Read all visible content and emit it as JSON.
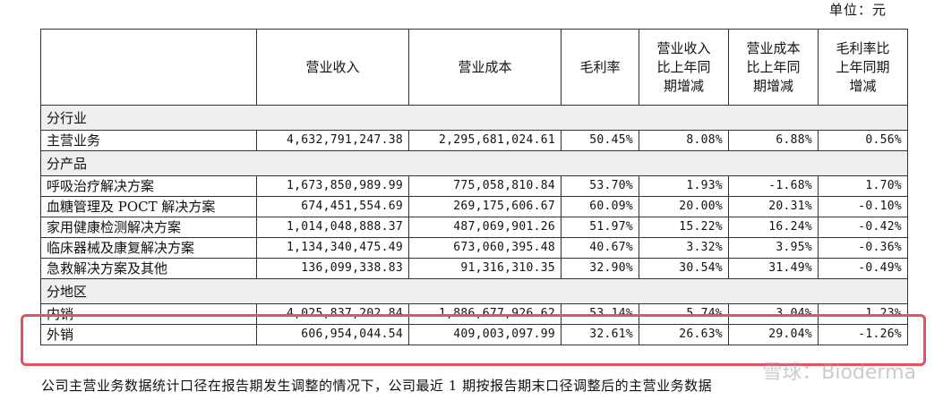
{
  "unit_label": "单位：元",
  "table": {
    "headers": [
      "",
      "营业收入",
      "营业成本",
      "毛利率",
      "营业收入比上年同期增减",
      "营业成本比上年同期增减",
      "毛利率比上年同期增减"
    ],
    "header_lines": [
      [
        ""
      ],
      [
        "营业收入"
      ],
      [
        "营业成本"
      ],
      [
        "毛利率"
      ],
      [
        "营业收入",
        "比上年同",
        "期增减"
      ],
      [
        "营业成本",
        "比上年同",
        "期增减"
      ],
      [
        "毛利率比",
        "上年同期",
        "增减"
      ]
    ],
    "sections": [
      {
        "title": "分行业",
        "rows": [
          [
            "主营业务",
            "4,632,791,247.38",
            "2,295,681,024.61",
            "50.45%",
            "8.08%",
            "6.88%",
            "0.56%"
          ]
        ]
      },
      {
        "title": "分产品",
        "rows": [
          [
            "呼吸治疗解决方案",
            "1,673,850,989.99",
            "775,058,810.84",
            "53.70%",
            "1.93%",
            "-1.68%",
            "1.70%"
          ],
          [
            "血糖管理及 POCT 解决方案",
            "674,451,554.69",
            "269,175,606.67",
            "60.09%",
            "20.00%",
            "20.31%",
            "-0.10%"
          ],
          [
            "家用健康检测解决方案",
            "1,014,048,888.37",
            "487,069,901.26",
            "51.97%",
            "15.22%",
            "16.24%",
            "-0.42%"
          ],
          [
            "临床器械及康复解决方案",
            "1,134,340,475.49",
            "673,060,395.48",
            "40.67%",
            "3.32%",
            "3.95%",
            "-0.36%"
          ],
          [
            "急救解决方案及其他",
            "136,099,338.83",
            "91,316,310.35",
            "32.90%",
            "30.54%",
            "31.49%",
            "-0.49%"
          ]
        ]
      },
      {
        "title": "分地区",
        "rows": [
          [
            "内销",
            "4,025,837,202.84",
            "1,886,677,926.62",
            "53.14%",
            "5.74%",
            "3.04%",
            "1.23%"
          ],
          [
            "外销",
            "606,954,044.54",
            "409,003,097.99",
            "32.61%",
            "26.63%",
            "29.04%",
            "-1.26%"
          ]
        ]
      }
    ]
  },
  "footnote": "公司主营业务数据统计口径在报告期发生调整的情况下，公司最近 1 期按报告期末口径调整后的主营业务数据",
  "watermark": "雪球：Bioderma",
  "highlight_color": "#e0535f"
}
